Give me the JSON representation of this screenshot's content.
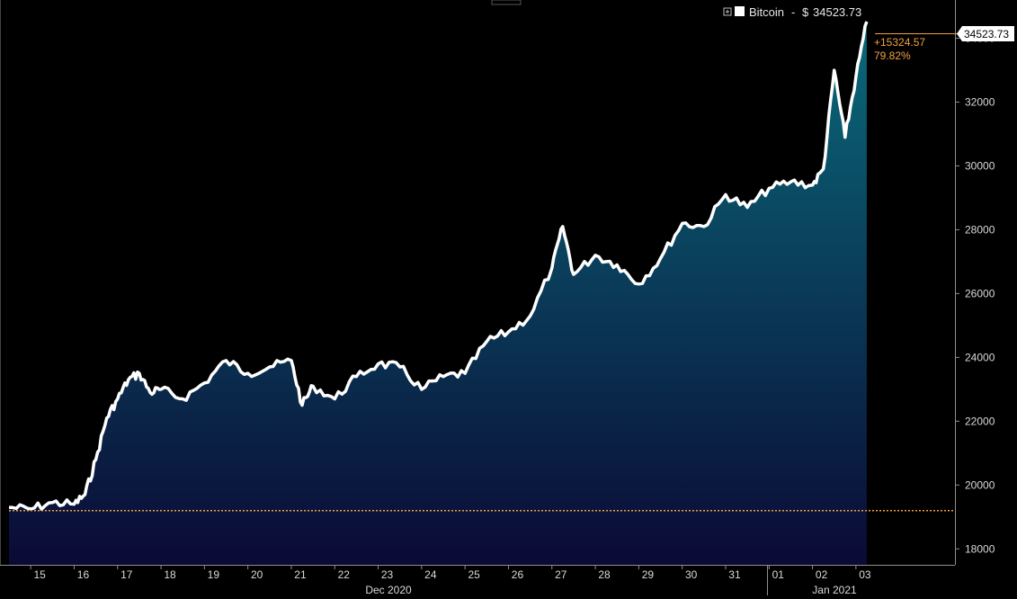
{
  "chart_data": {
    "type": "area",
    "series": [
      {
        "name": "Bitcoin",
        "x": [
          "Dec 14 12:00",
          "Dec 15 00:00",
          "Dec 15 12:00",
          "Dec 16 00:00",
          "Dec 16 06:00",
          "Dec 16 12:00",
          "Dec 16 18:00",
          "Dec 17 00:00",
          "Dec 17 06:00",
          "Dec 17 12:00",
          "Dec 17 18:00",
          "Dec 18 00:00",
          "Dec 18 12:00",
          "Dec 19 00:00",
          "Dec 19 12:00",
          "Dec 20 00:00",
          "Dec 20 12:00",
          "Dec 21 00:00",
          "Dec 21 06:00",
          "Dec 21 12:00",
          "Dec 22 00:00",
          "Dec 22 12:00",
          "Dec 23 00:00",
          "Dec 23 12:00",
          "Dec 24 00:00",
          "Dec 24 12:00",
          "Dec 25 00:00",
          "Dec 25 12:00",
          "Dec 26 00:00",
          "Dec 26 12:00",
          "Dec 27 00:00",
          "Dec 27 06:00",
          "Dec 27 12:00",
          "Dec 28 00:00",
          "Dec 28 12:00",
          "Dec 29 00:00",
          "Dec 29 12:00",
          "Dec 30 00:00",
          "Dec 30 12:00",
          "Dec 31 00:00",
          "Dec 31 12:00",
          "Jan 01 00:00",
          "Jan 01 12:00",
          "Jan 02 00:00",
          "Jan 02 06:00",
          "Jan 02 12:00",
          "Jan 02 18:00",
          "Jan 03 00:00",
          "Jan 03 06:00"
        ],
        "values": [
          19300,
          19250,
          19450,
          19400,
          19700,
          20800,
          22100,
          22700,
          23300,
          23500,
          22900,
          23000,
          22700,
          23200,
          23900,
          23500,
          23700,
          23900,
          22500,
          23100,
          22700,
          23400,
          23800,
          23700,
          23000,
          23400,
          23500,
          24500,
          24800,
          25300,
          26800,
          28100,
          26600,
          27200,
          26900,
          26300,
          27100,
          28200,
          28100,
          29100,
          28700,
          29300,
          29500,
          29400,
          29900,
          33000,
          30900,
          32800,
          34523.73
        ]
      }
    ],
    "legend": {
      "label": "Bitcoin",
      "currency": "$",
      "last": "34523.73",
      "placement": "top-right"
    },
    "last_value_label": "34523.73",
    "change_abs": "+15324.57",
    "change_pct": "79.82%",
    "baseline": 19199.16,
    "ylim": [
      17500,
      35200
    ],
    "yticks": [
      18000,
      20000,
      22000,
      24000,
      26000,
      28000,
      30000,
      32000,
      34000
    ],
    "xlim": [
      "Dec 14 12:00",
      "Jan 03 10:00"
    ],
    "xticks": [
      "15",
      "16",
      "17",
      "18",
      "19",
      "20",
      "21",
      "22",
      "23",
      "24",
      "25",
      "26",
      "27",
      "28",
      "29",
      "30",
      "31",
      "01",
      "02",
      "03"
    ],
    "xtick_dates": [
      "Dec 15",
      "Dec 16",
      "Dec 17",
      "Dec 18",
      "Dec 19",
      "Dec 20",
      "Dec 21",
      "Dec 22",
      "Dec 23",
      "Dec 24",
      "Dec 25",
      "Dec 26",
      "Dec 27",
      "Dec 28",
      "Dec 29",
      "Dec 30",
      "Dec 31",
      "Jan 01",
      "Jan 02",
      "Jan 03"
    ],
    "month_labels": [
      "Dec 2020",
      "Jan 2021"
    ],
    "grid": false,
    "colors": {
      "line": "#ffffff",
      "fill_top": "#0a6a7a",
      "fill_bottom": "#0a0a35",
      "baseline": "#f0a040",
      "axis": "#8f8f8f"
    }
  }
}
